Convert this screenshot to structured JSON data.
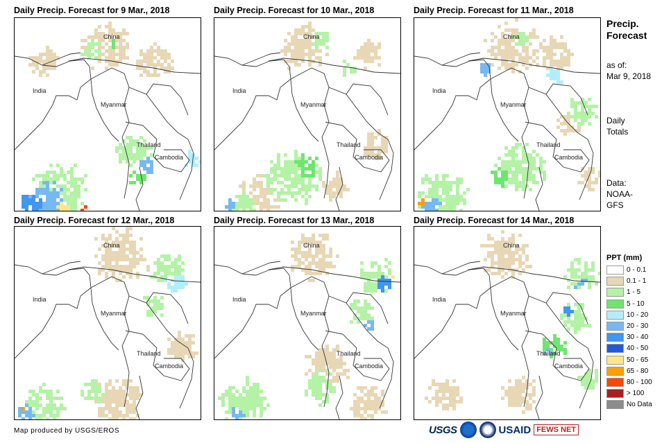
{
  "panels": [
    {
      "title": "Daily Precip. Forecast for 9 Mar., 2018"
    },
    {
      "title": "Daily Precip. Forecast for 10 Mar., 2018"
    },
    {
      "title": "Daily Precip. Forecast for 11 Mar., 2018"
    },
    {
      "title": "Daily Precip. Forecast for 12 Mar., 2018"
    },
    {
      "title": "Daily Precip. Forecast for 13 Mar., 2018"
    },
    {
      "title": "Daily Precip. Forecast for 14 Mar., 2018"
    }
  ],
  "map_labels": {
    "china": "China",
    "india": "India",
    "myanmar": "Myanmar",
    "thailand": "Thailand",
    "cambodia": "Cambodia"
  },
  "sidebar": {
    "title_line1": "Precip.",
    "title_line2": "Forecast",
    "asof_line1": "as of:",
    "asof_line2": "Mar 9, 2018",
    "totals_line1": "Daily",
    "totals_line2": "Totals",
    "data_line1": "Data:",
    "data_line2": "NOAA-",
    "data_line3": "GFS"
  },
  "legend": {
    "title": "PPT (mm)",
    "items": [
      {
        "label": "0 - 0.1",
        "color": "#ffffff"
      },
      {
        "label": "0.1 - 1",
        "color": "#e8d7b5"
      },
      {
        "label": "1 - 5",
        "color": "#b4f2a6"
      },
      {
        "label": "5 - 10",
        "color": "#6ee66e"
      },
      {
        "label": "10 - 20",
        "color": "#b2eefa"
      },
      {
        "label": "20 - 30",
        "color": "#78b8f0"
      },
      {
        "label": "30 - 40",
        "color": "#4196f0"
      },
      {
        "label": "40 - 50",
        "color": "#1e5ade"
      },
      {
        "label": "50 - 65",
        "color": "#ffe68c"
      },
      {
        "label": "65 - 80",
        "color": "#ffa000"
      },
      {
        "label": "80 - 100",
        "color": "#ff4600"
      },
      {
        "label": "> 100",
        "color": "#aa1e1e"
      },
      {
        "label": "No Data",
        "color": "#8c8c8c"
      }
    ]
  },
  "credit": "Map produced by USGS/EROS",
  "logos": {
    "usgs": "USGS",
    "usaid": "USAID",
    "fews": "FEWS NET"
  }
}
